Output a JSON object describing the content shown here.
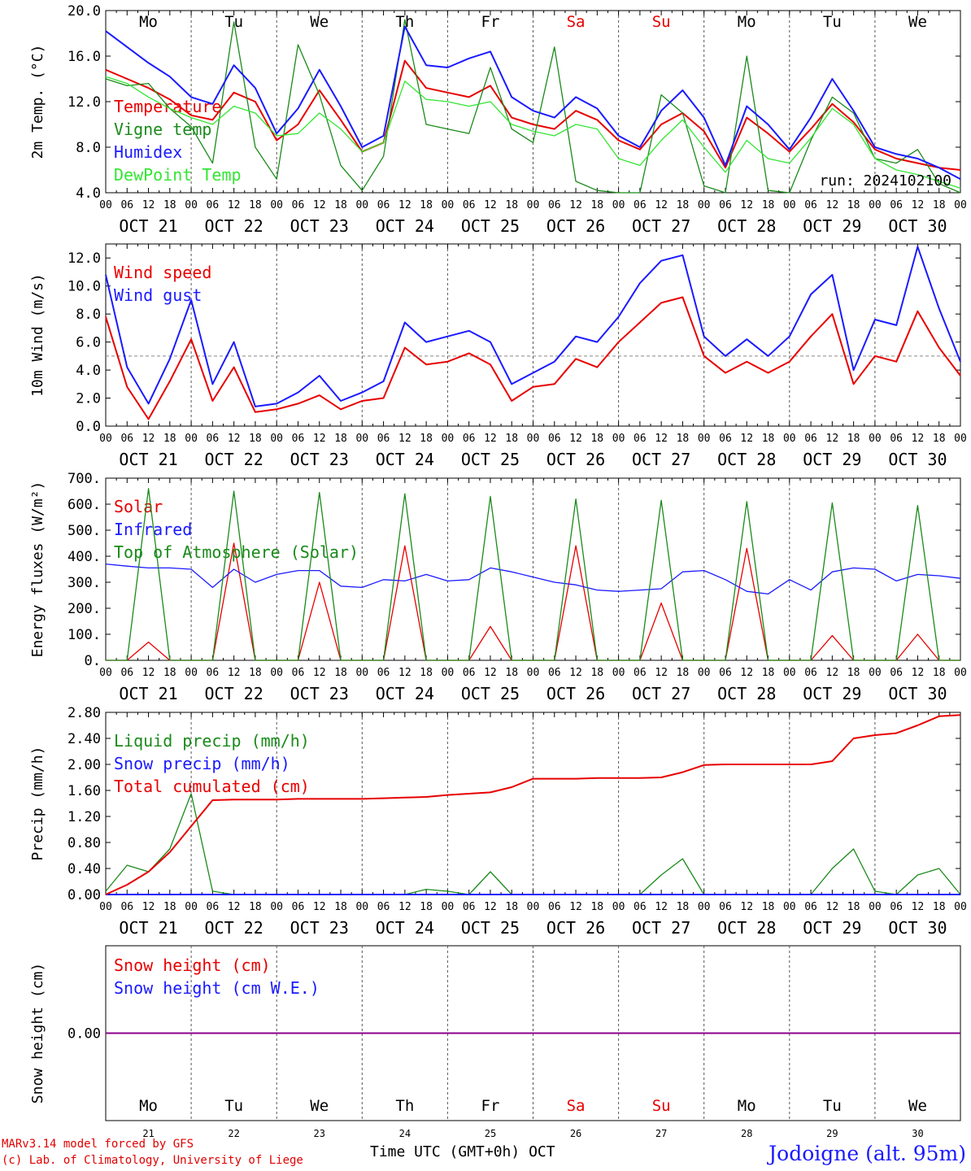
{
  "run_label": "run: 2024102100",
  "footer": {
    "model": "MARv3.14 model forced by GFS",
    "credit": "(c) Lab. of Climatology, University of Liege",
    "xlabel": "Time UTC (GMT+0h)",
    "month": "OCT",
    "station": "Jodoigne (alt. 95m)"
  },
  "days": {
    "names": [
      "Mo",
      "Tu",
      "We",
      "Th",
      "Fr",
      "Sa",
      "Su",
      "Mo",
      "Tu",
      "We"
    ],
    "weekend": [
      false,
      false,
      false,
      false,
      false,
      true,
      true,
      false,
      false,
      false
    ],
    "dates": [
      "OCT 21",
      "OCT 22",
      "OCT 23",
      "OCT 24",
      "OCT 25",
      "OCT 26",
      "OCT 27",
      "OCT 28",
      "OCT 29",
      "OCT 30"
    ],
    "numbers": [
      "21",
      "22",
      "23",
      "24",
      "25",
      "26",
      "27",
      "28",
      "29",
      "30"
    ],
    "hour_ticks": [
      "00",
      "06",
      "12",
      "18"
    ]
  },
  "colors": {
    "red": "#e80000",
    "green": "#1a8a1a",
    "blue": "#1a1aff",
    "lightgreen": "#33e633",
    "purple": "#8b008b"
  },
  "chart_data": [
    {
      "type": "line",
      "ylabel": "2m Temp. (°C)",
      "ylim": [
        4,
        20
      ],
      "yticks": [
        "4.0",
        "8.0",
        "12.0",
        "16.0",
        "20.0"
      ],
      "x_hours": [
        0,
        6,
        12,
        18,
        24,
        30,
        36,
        42,
        48,
        54,
        60,
        66,
        72,
        78,
        84,
        90,
        96,
        102,
        108,
        114,
        120,
        126,
        132,
        138,
        144,
        150,
        156,
        162,
        168,
        174,
        180,
        186,
        192,
        198,
        204,
        210,
        216,
        222,
        228,
        234,
        240
      ],
      "series": [
        {
          "name": "Temperature",
          "color": "red",
          "values": [
            14.8,
            14.0,
            13.2,
            12.2,
            10.8,
            10.4,
            12.8,
            12.0,
            8.6,
            10.0,
            13.0,
            10.4,
            7.6,
            8.4,
            15.6,
            13.2,
            12.8,
            12.4,
            13.4,
            10.6,
            10.0,
            9.6,
            11.2,
            10.4,
            8.6,
            7.8,
            10.0,
            11.0,
            9.4,
            6.2,
            10.6,
            9.2,
            7.6,
            9.6,
            11.8,
            10.2,
            7.8,
            7.0,
            6.6,
            6.2,
            6.0
          ]
        },
        {
          "name": "Vigne temp",
          "color": "green",
          "values": [
            14.0,
            13.4,
            13.6,
            11.4,
            9.8,
            6.6,
            19.0,
            8.0,
            5.2,
            17.0,
            12.6,
            6.4,
            4.2,
            7.2,
            19.2,
            10.0,
            9.6,
            9.2,
            15.0,
            9.6,
            8.4,
            16.8,
            5.0,
            4.2,
            4.0,
            4.0,
            12.6,
            11.0,
            4.6,
            4.0,
            16.0,
            4.2,
            4.0,
            8.6,
            12.4,
            11.0,
            7.0,
            6.6,
            7.8,
            4.8,
            4.0
          ]
        },
        {
          "name": "Humidex",
          "color": "blue",
          "values": [
            18.2,
            16.8,
            15.4,
            14.2,
            12.4,
            11.8,
            15.2,
            13.2,
            9.2,
            11.4,
            14.8,
            11.6,
            8.0,
            9.0,
            18.6,
            15.2,
            15.0,
            15.8,
            16.4,
            12.4,
            11.2,
            10.6,
            12.4,
            11.4,
            9.0,
            8.0,
            11.2,
            13.0,
            10.6,
            6.4,
            11.6,
            10.0,
            7.8,
            10.6,
            14.0,
            11.2,
            8.0,
            7.4,
            7.0,
            6.2,
            5.2
          ]
        },
        {
          "name": "DewPoint Temp",
          "color": "lightgreen",
          "values": [
            14.2,
            13.6,
            12.4,
            11.4,
            10.6,
            10.0,
            11.6,
            11.0,
            9.0,
            9.2,
            11.0,
            9.6,
            7.6,
            8.4,
            13.8,
            12.2,
            12.0,
            11.6,
            12.0,
            10.0,
            9.4,
            9.0,
            10.0,
            9.6,
            7.0,
            6.4,
            8.6,
            10.4,
            8.0,
            5.8,
            8.6,
            7.0,
            6.6,
            8.8,
            11.4,
            10.0,
            7.0,
            6.0,
            5.6,
            5.0,
            4.4
          ]
        }
      ]
    },
    {
      "type": "line",
      "ylabel": "10m Wind (m/s)",
      "ylim": [
        0,
        13
      ],
      "yticks": [
        "0.0",
        "2.0",
        "4.0",
        "6.0",
        "8.0",
        "10.0",
        "12.0"
      ],
      "reference_line": 5.0,
      "x_hours": [
        0,
        6,
        12,
        18,
        24,
        30,
        36,
        42,
        48,
        54,
        60,
        66,
        72,
        78,
        84,
        90,
        96,
        102,
        108,
        114,
        120,
        126,
        132,
        138,
        144,
        150,
        156,
        162,
        168,
        174,
        180,
        186,
        192,
        198,
        204,
        210,
        216,
        222,
        228,
        234,
        240
      ],
      "series": [
        {
          "name": "Wind speed",
          "color": "red",
          "values": [
            7.8,
            2.8,
            0.5,
            3.2,
            6.2,
            1.8,
            4.2,
            1.0,
            1.2,
            1.6,
            2.2,
            1.2,
            1.8,
            2.0,
            5.6,
            4.4,
            4.6,
            5.2,
            4.4,
            1.8,
            2.8,
            3.0,
            4.8,
            4.2,
            6.0,
            7.4,
            8.8,
            9.2,
            5.0,
            3.8,
            4.6,
            3.8,
            4.6,
            6.4,
            8.0,
            3.0,
            5.0,
            4.6,
            8.2,
            5.6,
            3.6
          ]
        },
        {
          "name": "Wind gust",
          "color": "blue",
          "values": [
            10.8,
            4.2,
            1.6,
            4.8,
            9.0,
            3.0,
            6.0,
            1.4,
            1.6,
            2.4,
            3.6,
            1.8,
            2.4,
            3.2,
            7.4,
            6.0,
            6.4,
            6.8,
            6.0,
            3.0,
            3.8,
            4.6,
            6.4,
            6.0,
            7.8,
            10.2,
            11.8,
            12.2,
            6.4,
            5.0,
            6.2,
            5.0,
            6.4,
            9.4,
            10.8,
            4.0,
            7.6,
            7.2,
            12.8,
            8.4,
            4.6
          ]
        }
      ]
    },
    {
      "type": "line",
      "ylabel": "Energy fluxes (W/m²)",
      "ylim": [
        0,
        700
      ],
      "yticks": [
        "0.",
        "100.",
        "200.",
        "300.",
        "400.",
        "500.",
        "600.",
        "700."
      ],
      "x_hours": [
        0,
        6,
        12,
        18,
        24,
        30,
        36,
        42,
        48,
        54,
        60,
        66,
        72,
        78,
        84,
        90,
        96,
        102,
        108,
        114,
        120,
        126,
        132,
        138,
        144,
        150,
        156,
        162,
        168,
        174,
        180,
        186,
        192,
        198,
        204,
        210,
        216,
        222,
        228,
        234,
        240
      ],
      "series": [
        {
          "name": "Solar",
          "color": "red",
          "values": [
            0,
            0,
            70,
            0,
            0,
            0,
            450,
            0,
            0,
            0,
            300,
            0,
            0,
            0,
            440,
            0,
            0,
            0,
            130,
            0,
            0,
            0,
            440,
            0,
            0,
            0,
            220,
            0,
            0,
            0,
            430,
            0,
            0,
            0,
            95,
            0,
            0,
            0,
            100,
            0,
            0
          ]
        },
        {
          "name": "Infrared",
          "color": "blue",
          "values": [
            370,
            362,
            355,
            355,
            350,
            280,
            350,
            300,
            330,
            345,
            345,
            285,
            280,
            310,
            305,
            330,
            305,
            310,
            355,
            340,
            320,
            300,
            290,
            270,
            265,
            270,
            275,
            340,
            345,
            310,
            265,
            255,
            310,
            270,
            340,
            355,
            350,
            305,
            330,
            325,
            315
          ]
        },
        {
          "name": "Top of Atmosphere (Solar)",
          "color": "green",
          "values": [
            0,
            0,
            660,
            0,
            0,
            0,
            650,
            0,
            0,
            0,
            645,
            0,
            0,
            0,
            640,
            0,
            0,
            0,
            630,
            0,
            0,
            0,
            620,
            0,
            0,
            0,
            615,
            0,
            0,
            0,
            610,
            0,
            0,
            0,
            605,
            0,
            0,
            0,
            595,
            0,
            0
          ]
        }
      ]
    },
    {
      "type": "line",
      "ylabel": "Precip (mm/h)",
      "ylim": [
        0,
        2.8
      ],
      "yticks": [
        "0.00",
        "0.40",
        "0.80",
        "1.20",
        "1.60",
        "2.00",
        "2.40",
        "2.80"
      ],
      "x_hours": [
        0,
        6,
        12,
        18,
        24,
        30,
        36,
        42,
        48,
        54,
        60,
        66,
        72,
        78,
        84,
        90,
        96,
        102,
        108,
        114,
        120,
        126,
        132,
        138,
        144,
        150,
        156,
        162,
        168,
        174,
        180,
        186,
        192,
        198,
        204,
        210,
        216,
        222,
        228,
        234,
        240
      ],
      "series": [
        {
          "name": "Liquid precip (mm/h)",
          "color": "green",
          "values": [
            0.05,
            0.45,
            0.35,
            0.7,
            1.55,
            0.05,
            0.0,
            0.0,
            0.0,
            0.0,
            0.0,
            0.0,
            0.0,
            0.0,
            0.0,
            0.08,
            0.05,
            0.0,
            0.35,
            0.0,
            0.0,
            0.0,
            0.0,
            0.0,
            0.0,
            0.0,
            0.3,
            0.55,
            0.0,
            0.0,
            0.0,
            0.0,
            0.0,
            0.0,
            0.4,
            0.7,
            0.05,
            0.0,
            0.3,
            0.4,
            0.0
          ]
        },
        {
          "name": "Snow precip (mm/h)",
          "color": "blue",
          "values": [
            0.0,
            0.0,
            0.0,
            0.0,
            0.0,
            0.0,
            0.0,
            0.0,
            0.0,
            0.0,
            0.0,
            0.0,
            0.0,
            0.0,
            0.0,
            0.0,
            0.0,
            0.0,
            0.0,
            0.0,
            0.0,
            0.0,
            0.0,
            0.0,
            0.0,
            0.0,
            0.0,
            0.0,
            0.0,
            0.0,
            0.0,
            0.0,
            0.0,
            0.0,
            0.0,
            0.0,
            0.0,
            0.0,
            0.0,
            0.0,
            0.0
          ]
        },
        {
          "name": "Total cumulated (cm)",
          "color": "red",
          "values": [
            0.0,
            0.15,
            0.35,
            0.65,
            1.05,
            1.45,
            1.46,
            1.46,
            1.46,
            1.47,
            1.47,
            1.47,
            1.47,
            1.48,
            1.49,
            1.5,
            1.53,
            1.55,
            1.57,
            1.65,
            1.78,
            1.78,
            1.78,
            1.79,
            1.79,
            1.79,
            1.8,
            1.88,
            1.99,
            2.0,
            2.0,
            2.0,
            2.0,
            2.0,
            2.05,
            2.4,
            2.45,
            2.48,
            2.6,
            2.74,
            2.76
          ]
        }
      ]
    },
    {
      "type": "line",
      "ylabel": "Snow height (cm)",
      "ylim": [
        -1,
        1
      ],
      "yticks": [
        "0.00"
      ],
      "x_hours": [
        0,
        240
      ],
      "series": [
        {
          "name": "Snow height (cm)",
          "color": "red",
          "values": [
            0,
            0
          ]
        },
        {
          "name": "Snow height (cm W.E.)",
          "color": "blue",
          "values": [
            0,
            0
          ]
        }
      ]
    }
  ]
}
